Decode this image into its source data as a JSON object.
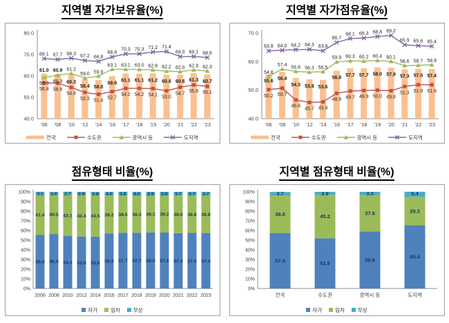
{
  "chart_data": [
    {
      "type": "bar-line",
      "title": "지역별 자가보유율(%)",
      "x_tick_labels": [
        "'06",
        "'08",
        "'10",
        "'12",
        "'14",
        "'16",
        "'17",
        "'18",
        "'19",
        "'20",
        "'21",
        "'22",
        "'23"
      ],
      "y_axis": {
        "min": 40,
        "max": 80,
        "ticks": [
          {
            "v": 80,
            "label": "80.0"
          },
          {
            "v": 70,
            "label": "70.0"
          },
          {
            "v": 60,
            "label": "60.0"
          },
          {
            "v": 50,
            "label": "50.0"
          },
          {
            "v": 40,
            "label": "40.0"
          }
        ]
      },
      "bar_series": {
        "name": "전국",
        "color": "#FAC090",
        "values": [
          61.0,
          60.9,
          60.3,
          58.4,
          58.0,
          59.9,
          61.1,
          61.1,
          61.2,
          60.6,
          60.6,
          61.3,
          60.7
        ]
      },
      "line_series": [
        {
          "name": "수도권",
          "color": "#C0504D",
          "marker": "square",
          "values": [
            56.8,
            56.6,
            54.6,
            52.3,
            51.4,
            52.7,
            54.2,
            54.2,
            54.1,
            53.0,
            54.7,
            55.8,
            55.1
          ]
        },
        {
          "name": "광역시 등",
          "color": "#9BBB59",
          "marker": "triangle",
          "values": [
            59.3,
            60.3,
            61.2,
            59.0,
            59.9,
            63.1,
            63.1,
            63.0,
            62.8,
            62.2,
            62.0,
            62.8,
            62.3
          ]
        },
        {
          "name": "도지역",
          "color": "#8064A2",
          "marker": "x",
          "values": [
            68.1,
            67.7,
            68.3,
            67.2,
            66.8,
            68.9,
            70.3,
            70.3,
            71.2,
            71.4,
            69.0,
            69.1,
            68.6
          ]
        }
      ],
      "legend_position": "bottom",
      "grid": false
    },
    {
      "type": "bar-line",
      "title": "지역별 자가점유율(%)",
      "x_tick_labels": [
        "'06",
        "'08",
        "'10",
        "'12",
        "'14",
        "'16",
        "'17",
        "'18",
        "'19",
        "'20",
        "'21",
        "'22",
        "'23"
      ],
      "y_axis": {
        "min": 40,
        "max": 70,
        "ticks": [
          {
            "v": 70,
            "label": "70.0"
          },
          {
            "v": 60,
            "label": "60.0"
          },
          {
            "v": 50,
            "label": "50.0"
          },
          {
            "v": 40,
            "label": "40.0"
          }
        ]
      },
      "bar_series": {
        "name": "전국",
        "color": "#FAC090",
        "values": [
          55.6,
          56.4,
          54.3,
          53.8,
          53.6,
          56.8,
          57.7,
          57.7,
          58.0,
          57.9,
          57.3,
          57.5,
          57.4
        ]
      },
      "line_series": [
        {
          "name": "수도권",
          "color": "#C0504D",
          "marker": "square",
          "values": [
            50.2,
            50.7,
            46.6,
            45.7,
            45.9,
            48.9,
            49.7,
            49.9,
            50.0,
            49.8,
            51.3,
            51.9,
            51.9
          ]
        },
        {
          "name": "광역시 등",
          "color": "#9BBB59",
          "marker": "triangle",
          "values": [
            54.8,
            57.4,
            56.6,
            56.3,
            56.5,
            59.9,
            60.3,
            60.2,
            60.4,
            60.1,
            58.6,
            58.7,
            58.9
          ]
        },
        {
          "name": "도지역",
          "color": "#8064A2",
          "marker": "x",
          "values": [
            63.8,
            64.0,
            64.2,
            64.3,
            63.8,
            66.7,
            68.1,
            68.3,
            68.8,
            69.2,
            65.9,
            65.6,
            65.4
          ]
        }
      ],
      "legend_position": "bottom",
      "grid": false
    },
    {
      "type": "stacked-bar",
      "title": "점유형태 비율(%)",
      "x_tick_labels": [
        "2006",
        "2008",
        "2010",
        "2012",
        "2014",
        "2016",
        "2017",
        "2018",
        "2019",
        "2020",
        "2021",
        "2022",
        "2023"
      ],
      "y_axis": {
        "min": 0,
        "max": 100,
        "tick_labels": [
          "100%",
          "90%",
          "80%",
          "70%",
          "60%",
          "50%",
          "40%",
          "30%",
          "20%",
          "10%",
          "0%"
        ]
      },
      "series": [
        {
          "name": "자가",
          "color": "#4F81BD",
          "values": [
            55.6,
            56.4,
            54.3,
            53.8,
            53.6,
            56.8,
            57.7,
            57.7,
            58.0,
            57.9,
            57.3,
            57.5,
            57.4
          ]
        },
        {
          "name": "임차",
          "color": "#9BBB59",
          "values": [
            41.4,
            40.5,
            43.1,
            43.4,
            43.5,
            39.2,
            38.5,
            38.3,
            38.1,
            38.2,
            39.0,
            38.8,
            38.8
          ]
        },
        {
          "name": "무상",
          "color": "#4BACC6",
          "values": [
            3.1,
            3.0,
            2.7,
            2.8,
            2.8,
            4.0,
            3.9,
            4.0,
            3.9,
            3.9,
            3.7,
            3.7,
            3.7
          ]
        }
      ],
      "legend_position": "bottom",
      "grid": false
    },
    {
      "type": "stacked-bar",
      "title": "지역별 점유형태 비율(%)",
      "x_tick_labels": [
        "전국",
        "수도권",
        "광역시 등",
        "도지역"
      ],
      "y_axis": {
        "min": 0,
        "max": 100,
        "tick_labels": [
          "100%",
          "90%",
          "80%",
          "70%",
          "60%",
          "50%",
          "40%",
          "30%",
          "20%",
          "10%",
          "0%"
        ]
      },
      "series": [
        {
          "name": "자가",
          "color": "#4F81BD",
          "values": [
            57.4,
            51.9,
            58.9,
            65.4
          ]
        },
        {
          "name": "임차",
          "color": "#9BBB59",
          "values": [
            38.8,
            45.2,
            37.8,
            29.3
          ]
        },
        {
          "name": "무상",
          "color": "#4BACC6",
          "values": [
            3.7,
            2.9,
            3.3,
            5.4
          ]
        }
      ],
      "legend_position": "bottom",
      "grid": false
    }
  ],
  "colors": {
    "nationwide_bar": "#FAC090",
    "capital_region_line": "#C0504D",
    "metro_cities_line": "#9BBB59",
    "provinces_line": "#8064A2",
    "owned_segment": "#4F81BD",
    "rented_segment": "#9BBB59",
    "free_segment": "#4BACC6",
    "label_text": "#17375E"
  }
}
